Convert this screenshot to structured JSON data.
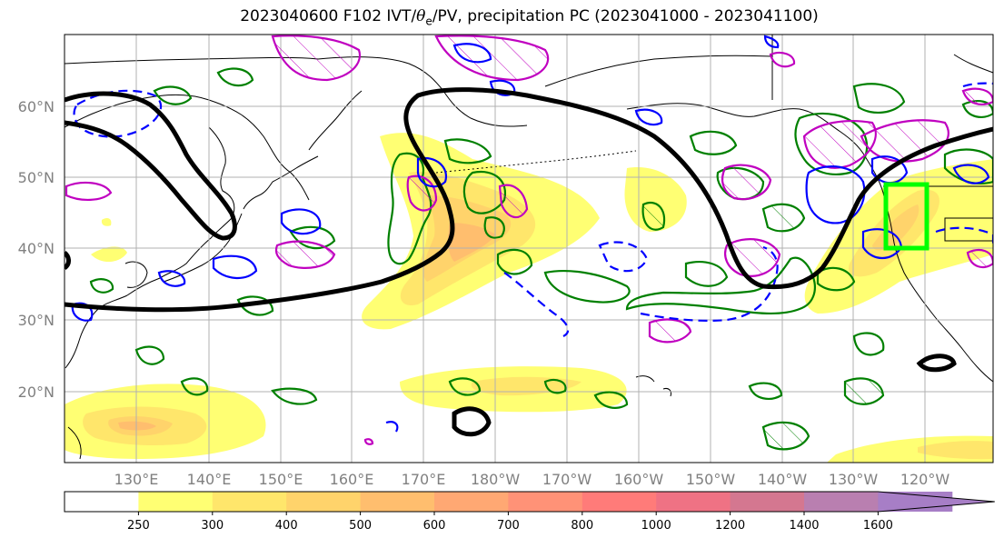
{
  "title": {
    "prefix": "2023040600 F102 IVT/",
    "theta": "θ",
    "theta_sub": "e",
    "suffix": "/PV, precipitation PC (2023041000 - 2023041100)"
  },
  "map": {
    "lat_labels": [
      "60°N",
      "50°N",
      "40°N",
      "30°N",
      "20°N"
    ],
    "lon_labels": [
      "130°E",
      "140°E",
      "150°E",
      "160°E",
      "170°E",
      "180°W",
      "170°W",
      "160°W",
      "150°W",
      "140°W",
      "130°W",
      "120°W"
    ],
    "ocean_color": "#ffffff",
    "grid_color": "#b0b0b0",
    "contour_colors": {
      "theta_e": "#000000",
      "pv_negative": "#0000ff",
      "precip_pc": "#008000",
      "ivt_anomaly": "#c000c0",
      "target_box": "#00ff00"
    }
  },
  "colorbar": {
    "ticks": [
      "250",
      "300",
      "400",
      "500",
      "600",
      "700",
      "800",
      "1000",
      "1200",
      "1400",
      "1600"
    ],
    "colors": [
      "#ffffff",
      "#ffff73",
      "#ffe66b",
      "#ffd36b",
      "#ffbe6e",
      "#ffa873",
      "#ff9277",
      "#ff7b79",
      "#ef7284",
      "#d47790",
      "#b97fb0",
      "#a77ec6"
    ]
  }
}
